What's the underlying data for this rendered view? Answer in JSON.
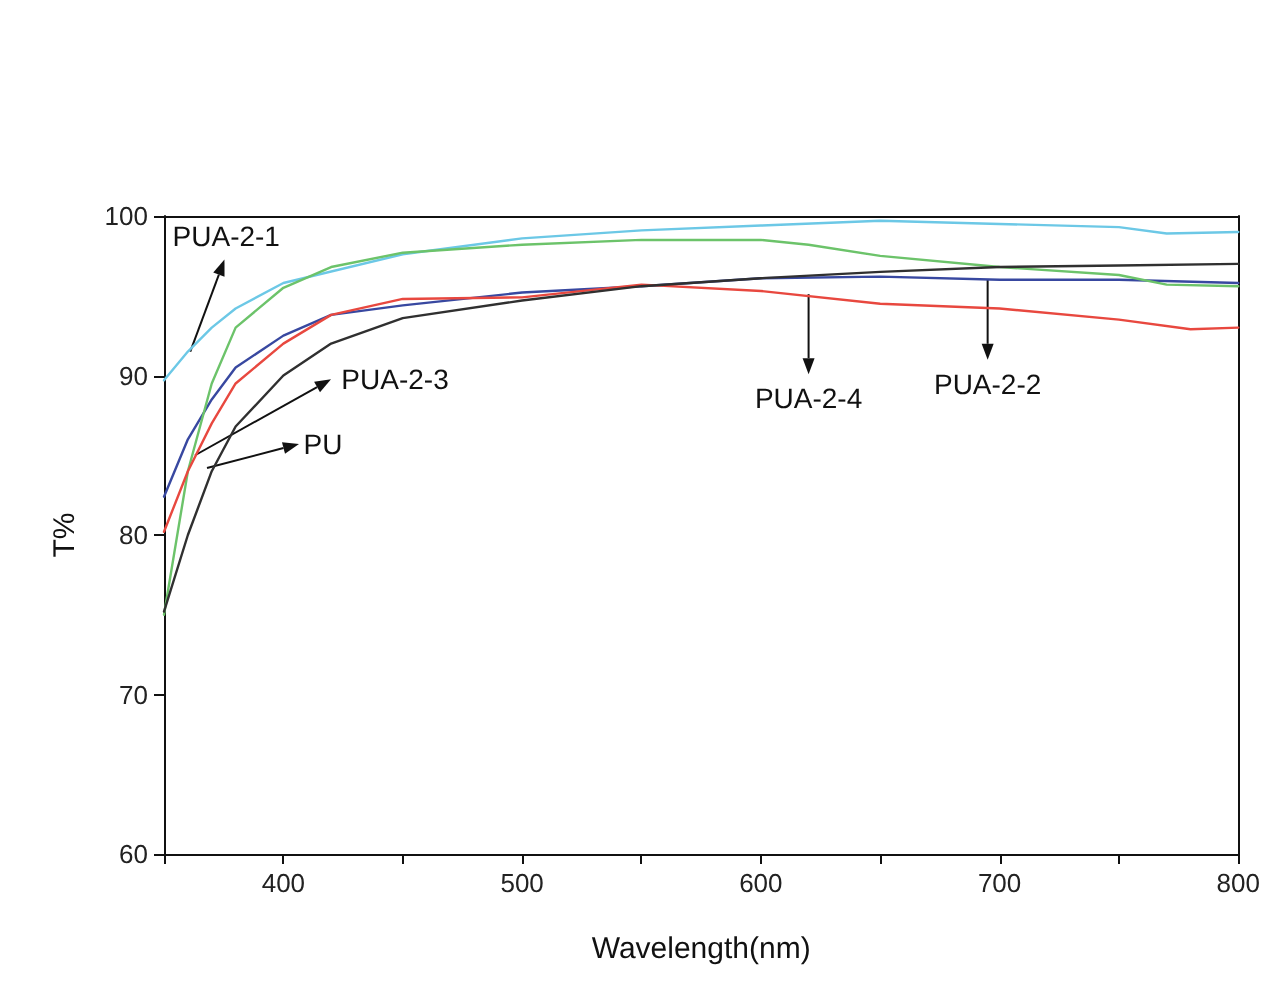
{
  "chart_data": {
    "type": "line",
    "xlabel": "Wavelength(nm)",
    "ylabel": "T%",
    "xlim": [
      350,
      800
    ],
    "ylim": [
      60,
      100
    ],
    "xticks": [
      {
        "value": 350,
        "label": null
      },
      400,
      {
        "value": 450,
        "label": null
      },
      500,
      {
        "value": 550,
        "label": null
      },
      600,
      {
        "value": 650,
        "label": null
      },
      700,
      {
        "value": 750,
        "label": null
      },
      800
    ],
    "yticks": [
      60,
      70,
      80,
      90,
      100
    ],
    "grid": false,
    "marker": "none",
    "line_style": "solid",
    "series": [
      {
        "color": "#6cc8e6",
        "x": [
          350,
          360,
          370,
          380,
          400,
          450,
          500,
          550,
          600,
          650,
          700,
          750,
          770,
          800
        ],
        "values": [
          89.7,
          91.5,
          93,
          94.2,
          95.8,
          97.6,
          98.6,
          99.1,
          99.4,
          99.7,
          99.5,
          99.3,
          98.9,
          99
        ]
      },
      {
        "color": "#3848a0",
        "x": [
          350,
          360,
          370,
          380,
          400,
          420,
          450,
          500,
          550,
          600,
          650,
          700,
          750,
          800
        ],
        "values": [
          82.4,
          86,
          88.5,
          90.5,
          92.5,
          93.8,
          94.4,
          95.2,
          95.6,
          96.1,
          96.2,
          96,
          96,
          95.8
        ]
      },
      {
        "color": "#6cc36a",
        "x": [
          350,
          360,
          370,
          380,
          400,
          420,
          450,
          500,
          550,
          600,
          620,
          650,
          700,
          750,
          770,
          800
        ],
        "values": [
          75,
          84,
          89.5,
          93,
          95.5,
          96.8,
          97.7,
          98.2,
          98.5,
          98.5,
          98.2,
          97.5,
          96.8,
          96.3,
          95.7,
          95.6
        ]
      },
      {
        "color": "#e8483f",
        "x": [
          350,
          360,
          370,
          380,
          400,
          420,
          450,
          500,
          550,
          600,
          650,
          700,
          750,
          780,
          800
        ],
        "values": [
          80.2,
          84,
          87,
          89.5,
          92,
          93.8,
          94.8,
          94.9,
          95.7,
          95.3,
          94.5,
          94.2,
          93.5,
          92.9,
          93
        ]
      },
      {
        "color": "#303030",
        "x": [
          350,
          360,
          370,
          380,
          400,
          420,
          450,
          500,
          550,
          600,
          650,
          700,
          750,
          800
        ],
        "values": [
          75.2,
          80,
          84,
          86.8,
          90,
          92,
          93.6,
          94.7,
          95.6,
          96.1,
          96.5,
          96.8,
          96.9,
          97
        ]
      }
    ],
    "annotations": [
      {
        "text": "PUA-2-1",
        "x": 361,
        "y": 91.5
      },
      {
        "text": "PUA-2-3",
        "x": 363,
        "y": 85
      },
      {
        "text": "PU",
        "x": 368,
        "y": 84.2
      },
      {
        "text": "PUA-2-4",
        "x": 620,
        "y": 95.1
      },
      {
        "text": "PUA-2-2",
        "x": 695,
        "y": 96
      }
    ]
  }
}
